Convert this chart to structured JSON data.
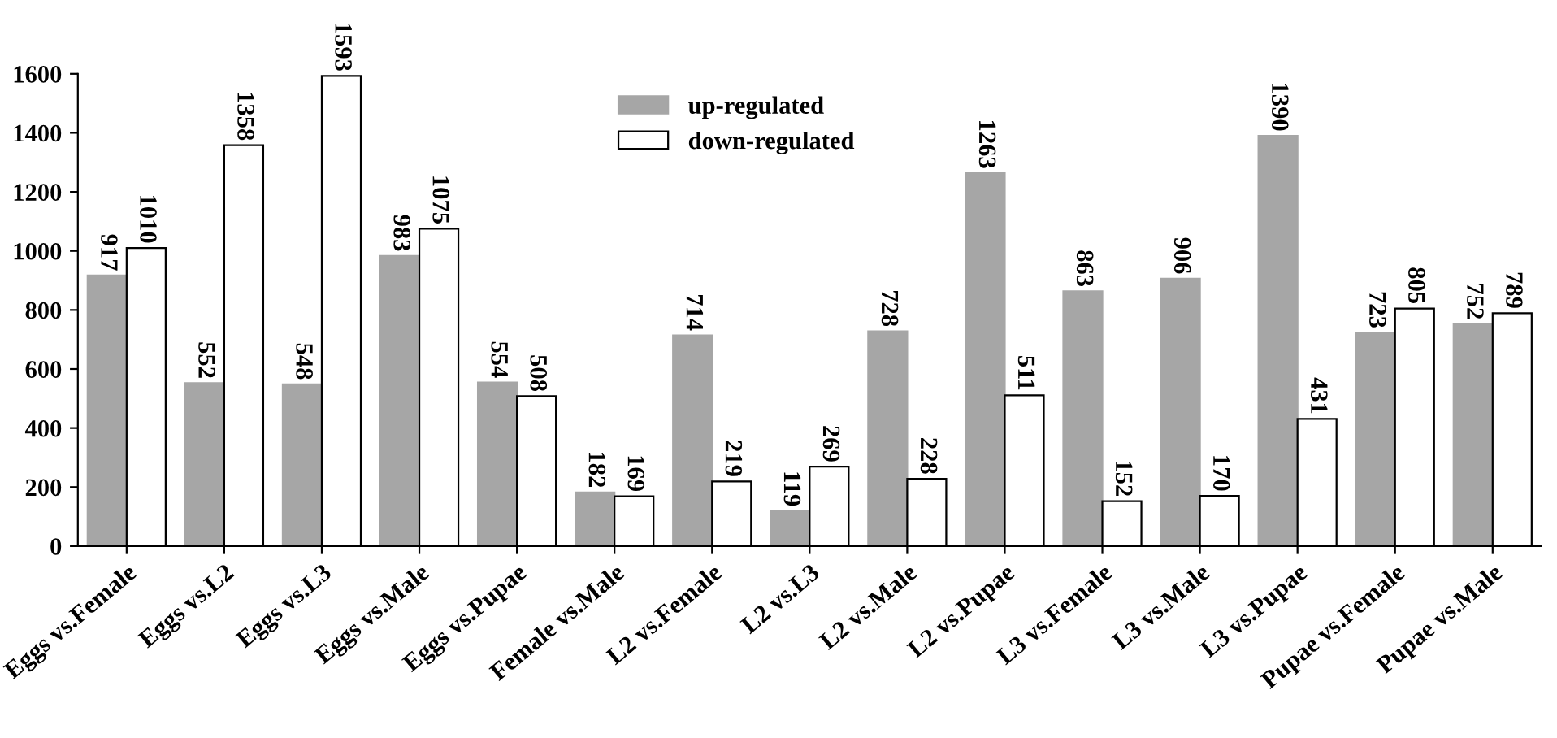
{
  "chart_data": {
    "type": "bar",
    "categories": [
      "Eggs vs.Female",
      "Eggs vs.L2",
      "Eggs vs.L3",
      "Eggs vs.Male",
      "Eggs vs.Pupae",
      "Female vs.Male",
      "L2 vs.Female",
      "L2 vs.L3",
      "L2 vs.Male",
      "L2 vs.Pupae",
      "L3 vs.Female",
      "L3 vs.Male",
      "L3 vs.Pupae",
      "Pupae vs.Female",
      "Pupae vs.Male"
    ],
    "series": [
      {
        "name": "up-regulated",
        "color": "#a6a6a6",
        "values": [
          917,
          552,
          548,
          983,
          554,
          182,
          714,
          119,
          728,
          1263,
          863,
          906,
          1390,
          723,
          752
        ]
      },
      {
        "name": "down-regulated",
        "color": "#ffffff",
        "values": [
          1010,
          1358,
          1593,
          1075,
          508,
          169,
          219,
          269,
          228,
          511,
          152,
          170,
          431,
          805,
          789
        ]
      }
    ],
    "ylim": [
      0,
      1600
    ],
    "yticks": [
      0,
      200,
      400,
      600,
      800,
      1000,
      1200,
      1400,
      1600
    ],
    "data_labels": true,
    "grid": false,
    "legend": "top"
  }
}
